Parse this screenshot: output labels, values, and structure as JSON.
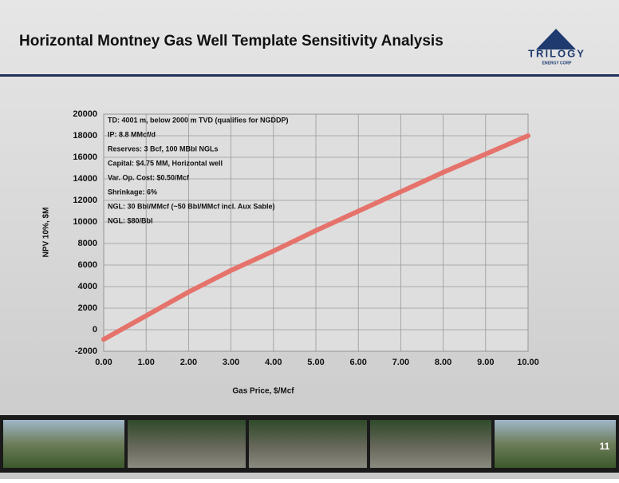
{
  "header": {
    "title": "Horizontal Montney Gas Well Template Sensitivity Analysis",
    "logo": "TRILOGY",
    "logo_subtitle": "ENERGY CORP"
  },
  "chart_data": {
    "type": "line",
    "annotations": [
      "TD: 4001 m, below 2000 m TVD (qualifies for NGDDP)",
      "IP: 8.8 MMcf/d",
      "Reserves: 3 Bcf, 100 MBbl NGLs",
      "Capital: $4.75 MM, Horizontal well",
      "Var. Op. Cost: $0.50/Mcf",
      "Shrinkage: 6%",
      "NGL: 30 Bbl/MMcf (~50 Bbl/MMcf incl. Aux Sable)",
      "NGL: $80/Bbl"
    ],
    "x_label": "Gas Price, $/Mcf",
    "y_label": "NPV 10%, $M",
    "x": [
      0,
      1,
      2,
      3,
      4,
      5,
      6,
      7,
      8,
      9,
      10
    ],
    "series": [
      {
        "color": "#e5736b",
        "values": [
          -900,
          1300,
          3500,
          5500,
          7300,
          9200,
          11000,
          12800,
          14600,
          16300,
          18000
        ]
      }
    ],
    "xlim": [
      0,
      10
    ],
    "xticks": [
      {
        "value": 0,
        "label": "0.00"
      },
      {
        "value": 1,
        "label": "1.00"
      },
      {
        "value": 2,
        "label": "2.00"
      },
      {
        "value": 3,
        "label": "3.00"
      },
      {
        "value": 4,
        "label": "4.00"
      },
      {
        "value": 5,
        "label": "5.00"
      },
      {
        "value": 6,
        "label": "6.00"
      },
      {
        "value": 7,
        "label": "7.00"
      },
      {
        "value": 8,
        "label": "8.00"
      },
      {
        "value": 9,
        "label": "9.00"
      },
      {
        "value": 10,
        "label": "10.00"
      }
    ],
    "ylim": [
      -2000,
      20000
    ],
    "yticks": [
      -2000,
      0,
      2000,
      4000,
      6000,
      8000,
      10000,
      12000,
      14000,
      16000,
      18000,
      20000
    ],
    "grid": true
  },
  "footer": {
    "page": "11"
  }
}
